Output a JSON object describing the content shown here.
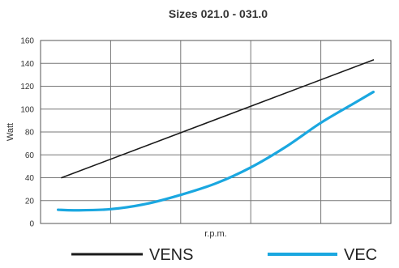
{
  "chart_data": {
    "type": "line",
    "title": "Sizes 021.0 - 031.0",
    "xlabel": "r.p.m.",
    "ylabel": "Watt",
    "ylim": [
      0,
      160
    ],
    "yticks": [
      0,
      20,
      40,
      60,
      80,
      100,
      120,
      140,
      160
    ],
    "xlim": [
      0,
      10
    ],
    "grid": true,
    "legend_position": "bottom",
    "series": [
      {
        "name": "VENS",
        "color": "#1a1a1a",
        "x": [
          0.6,
          9.5
        ],
        "y": [
          40,
          143
        ]
      },
      {
        "name": "VEC",
        "color": "#1aa7e0",
        "x": [
          0.5,
          1.0,
          2.0,
          3.0,
          4.0,
          5.0,
          6.0,
          7.0,
          8.0,
          9.0,
          9.5
        ],
        "y": [
          12,
          11.5,
          12.5,
          17,
          25,
          35,
          49,
          67,
          88,
          106,
          115
        ]
      }
    ]
  }
}
